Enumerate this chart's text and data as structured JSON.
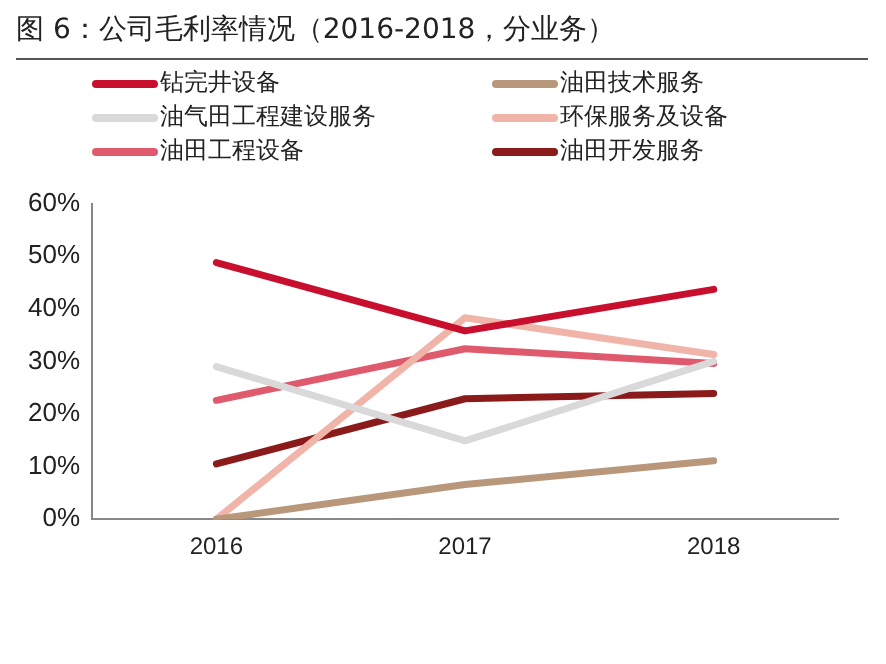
{
  "chart_data": {
    "type": "line",
    "title": "图 6：公司毛利率情况（2016-2018，分业务）",
    "categories": [
      "2016",
      "2017",
      "2018"
    ],
    "series": [
      {
        "name": "钻完井设备",
        "color": "#c8102e",
        "values": [
          48.8,
          35.8,
          43.7
        ]
      },
      {
        "name": "油田技术服务",
        "color": "#b8977a",
        "values": [
          0,
          6.6,
          11.1
        ]
      },
      {
        "name": "油气田工程建设服务",
        "color": "#d9d9d9",
        "values": [
          29,
          14.9,
          30
        ]
      },
      {
        "name": "环保服务及设备",
        "color": "#f0b4a8",
        "values": [
          0,
          38.3,
          31.3
        ]
      },
      {
        "name": "油田工程设备",
        "color": "#e05a6e",
        "values": [
          22.6,
          32.4,
          29.6
        ]
      },
      {
        "name": "油田开发服务",
        "color": "#8b1a1a",
        "values": [
          10.5,
          22.9,
          23.9
        ]
      }
    ],
    "ylim": [
      0,
      60
    ],
    "yticks": [
      {
        "value": 0,
        "label": "0%"
      },
      {
        "value": 10,
        "label": "10%"
      },
      {
        "value": 20,
        "label": "20%"
      },
      {
        "value": 30,
        "label": "30%"
      },
      {
        "value": 40,
        "label": "40%"
      },
      {
        "value": 50,
        "label": "50%"
      },
      {
        "value": 60,
        "label": "60%"
      }
    ],
    "grid": false,
    "legend": "top",
    "marker": "none",
    "line_style": "solid"
  }
}
